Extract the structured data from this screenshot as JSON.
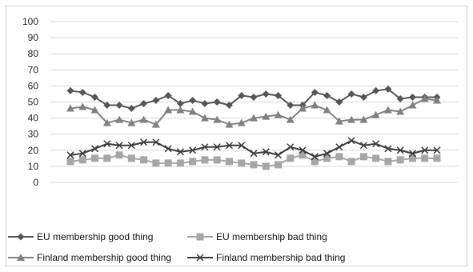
{
  "chart_data": {
    "type": "line",
    "title": "",
    "xlabel": "",
    "ylabel": "",
    "ylim": [
      0,
      100
    ],
    "yticks": [
      0,
      10,
      20,
      30,
      40,
      50,
      60,
      70,
      80,
      90,
      100
    ],
    "grid": "horizontal",
    "legend_position": "bottom",
    "x": [
      1,
      2,
      3,
      4,
      5,
      6,
      7,
      8,
      9,
      10,
      11,
      12,
      13,
      14,
      15,
      16,
      17,
      18,
      19,
      20,
      21,
      22,
      23,
      24,
      25,
      26,
      27,
      28,
      29,
      30,
      31
    ],
    "series": [
      {
        "name": "EU membership good thing",
        "color": "#555555",
        "marker": "diamond",
        "values": [
          57,
          56,
          53,
          48,
          48,
          46,
          49,
          51,
          54,
          49,
          51,
          49,
          50,
          48,
          54,
          53,
          55,
          54,
          48,
          48,
          56,
          54,
          50,
          55,
          53,
          57,
          58,
          52,
          53,
          53,
          53
        ]
      },
      {
        "name": "EU membership bad thing",
        "color": "#a6a6a6",
        "marker": "square",
        "values": [
          13,
          14,
          15,
          15,
          17,
          15,
          14,
          12,
          12,
          12,
          13,
          14,
          14,
          13,
          12,
          11,
          10,
          11,
          15,
          17,
          13,
          15,
          16,
          13,
          16,
          15,
          13,
          14,
          15,
          15,
          15
        ]
      },
      {
        "name": "Finland membership good thing",
        "color": "#808080",
        "marker": "triangle",
        "values": [
          46,
          47,
          45,
          37,
          39,
          37,
          39,
          36,
          45,
          45,
          44,
          40,
          39,
          36,
          37,
          40,
          41,
          42,
          39,
          46,
          48,
          45,
          38,
          39,
          39,
          42,
          45,
          44,
          48,
          52,
          51
        ]
      },
      {
        "name": "Finland membership bad thing",
        "color": "#3a3a3a",
        "marker": "x",
        "values": [
          17,
          18,
          21,
          24,
          23,
          23,
          25,
          25,
          21,
          19,
          20,
          22,
          22,
          23,
          23,
          18,
          19,
          17,
          22,
          20,
          16,
          18,
          22,
          26,
          23,
          24,
          21,
          20,
          18,
          20,
          20
        ]
      }
    ]
  }
}
